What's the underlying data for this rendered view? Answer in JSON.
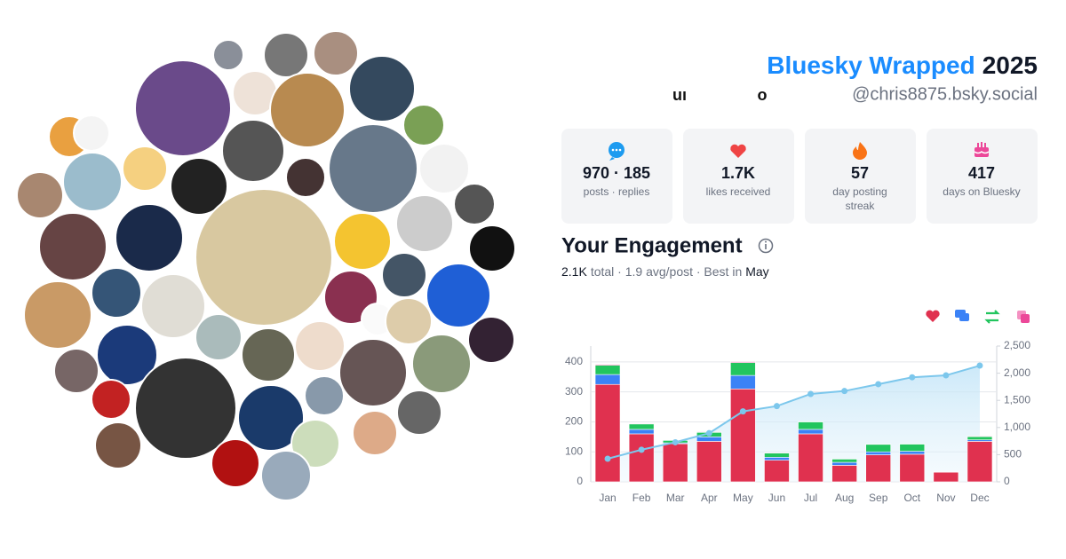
{
  "header": {
    "brand": "Bluesky Wrapped",
    "year": "2025",
    "handle": "@chris8875.bsky.social",
    "name_fragments": [
      "uı",
      "o"
    ]
  },
  "stats": [
    {
      "value": "970 · 185",
      "label": [
        "posts · replies"
      ]
    },
    {
      "value": "1.7K",
      "label": [
        "likes received"
      ]
    },
    {
      "value": "57",
      "label": [
        "day posting",
        "streak"
      ]
    },
    {
      "value": "417",
      "label": [
        "days on Bluesky"
      ]
    }
  ],
  "engagement": {
    "title": "Your Engagement",
    "summary": [
      "2.1K",
      "total · 1.9 avg/post · Best in",
      "May"
    ]
  },
  "chart_data": {
    "type": "bar",
    "stacked": true,
    "categories": [
      "Jan",
      "Feb",
      "Mar",
      "Apr",
      "May",
      "Jun",
      "Jul",
      "Aug",
      "Sep",
      "Oct",
      "Nov",
      "Dec"
    ],
    "series": [
      {
        "color": "#e0314f",
        "values": [
          325,
          160,
          127,
          135,
          310,
          72,
          160,
          55,
          90,
          92,
          32,
          135
        ]
      },
      {
        "color": "#3b82f6",
        "values": [
          33,
          15,
          3,
          15,
          45,
          10,
          15,
          10,
          10,
          10,
          2,
          5
        ]
      },
      {
        "color": "#22c55e",
        "values": [
          31,
          18,
          8,
          15,
          43,
          14,
          25,
          11,
          25,
          24,
          0,
          11
        ]
      },
      {
        "color": "#ec4899",
        "values": [
          3,
          2,
          0,
          2,
          3,
          1,
          1,
          1,
          1,
          1,
          1,
          2
        ]
      },
      {
        "type": "area",
        "axis": "y2",
        "color": "#7cc7ec",
        "values": [
          425,
          590,
          728,
          896,
          1297,
          1394,
          1618,
          1672,
          1798,
          1925,
          1960,
          2140
        ]
      }
    ],
    "ylim": [
      0,
      453
    ],
    "yticks": [
      0,
      100,
      200,
      300,
      400
    ],
    "y2lim": [
      0,
      2500
    ],
    "y2ticks": [
      0,
      500,
      {
        "value": 1000,
        "label": "1,000"
      },
      {
        "value": 1500,
        "label": "1,500"
      },
      {
        "value": 2000,
        "label": "2,000"
      },
      {
        "value": 2500,
        "label": "2,500"
      }
    ],
    "grid": true
  }
}
